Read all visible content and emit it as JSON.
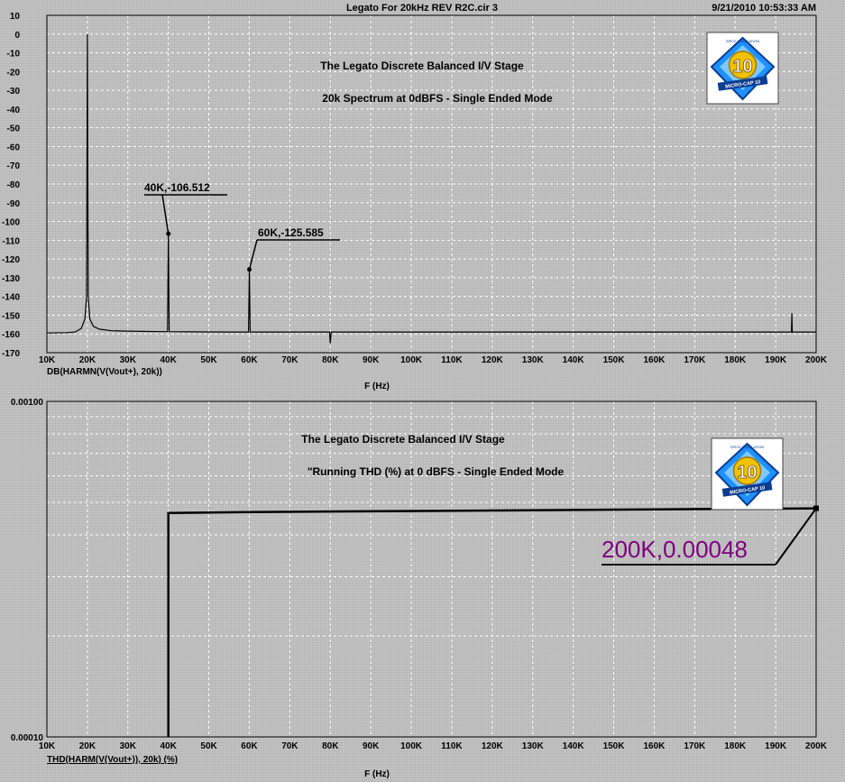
{
  "window": {
    "title": "Legato For 20kHz REV R2C.cir 3",
    "timestamp": "9/21/2010 10:53:33 AM"
  },
  "logo": {
    "number": "10",
    "ring_text": "MICRO-CAP 10",
    "top_text": "SPICE SIMULATION"
  },
  "colors": {
    "plot_bg": "#c0c0c0",
    "trace": "#000000",
    "grid": "#ffffff",
    "highlight_label": "#800080"
  },
  "chart_data": [
    {
      "type": "line",
      "title_lines": [
        "The Legato Discrete Balanced I/V Stage",
        "20k Spectrum at 0dBFS - Single Ended Mode"
      ],
      "trace_label": "DB(HARMN(V(Vout+), 20k))",
      "xlabel": "F (Hz)",
      "ylabel": "",
      "xlim": [
        10000,
        200000
      ],
      "ylim": [
        -170,
        10
      ],
      "grid": true,
      "x_tick_labels": [
        "10K",
        "20K",
        "30K",
        "40K",
        "50K",
        "60K",
        "70K",
        "80K",
        "90K",
        "100K",
        "110K",
        "120K",
        "130K",
        "140K",
        "150K",
        "160K",
        "170K",
        "180K",
        "190K",
        "200K"
      ],
      "y_ticks": [
        10,
        0,
        -10,
        -20,
        -30,
        -40,
        -50,
        -60,
        -70,
        -80,
        -90,
        -100,
        -110,
        -120,
        -130,
        -140,
        -150,
        -160,
        -170
      ],
      "series": [
        {
          "x": [
            10000,
            15000,
            17000,
            18500,
            19400,
            19800,
            20000,
            20200,
            20600,
            21500,
            23000,
            26000,
            30000,
            35000,
            39800,
            40000,
            40200,
            45000,
            55000,
            59800,
            60000,
            60200,
            70000,
            79800,
            80000,
            80200,
            90000,
            100000,
            120000,
            140000,
            160000,
            180000,
            193900,
            194000,
            194100,
            200000
          ],
          "y": [
            -159.5,
            -159.3,
            -159,
            -157,
            -152,
            -140,
            0,
            -140,
            -152,
            -156,
            -157.5,
            -158.3,
            -158.5,
            -158.7,
            -158.8,
            -106.5,
            -158.8,
            -158.9,
            -159,
            -159,
            -125.6,
            -159,
            -159,
            -159,
            -165,
            -159,
            -159,
            -159,
            -159,
            -159,
            -159,
            -159,
            -159,
            -149,
            -159,
            -159
          ]
        }
      ],
      "annotations": [
        {
          "text": "40K,-106.512",
          "x": 40000,
          "y": -106.512
        },
        {
          "text": "60K,-125.585",
          "x": 60000,
          "y": -125.585
        }
      ]
    },
    {
      "type": "line",
      "title_lines": [
        "The Legato Discrete Balanced I/V Stage",
        "\"Running THD (%) at 0 dBFS - Single Ended Mode"
      ],
      "trace_label": "THD(HARM(V(Vout+)), 20k) (%)",
      "xlabel": "F (Hz)",
      "ylabel": "",
      "xlim": [
        10000,
        200000
      ],
      "ylim": [
        0.0001,
        0.001
      ],
      "y_scale": "log",
      "grid": true,
      "x_tick_labels": [
        "10K",
        "20K",
        "30K",
        "40K",
        "50K",
        "60K",
        "70K",
        "80K",
        "90K",
        "100K",
        "110K",
        "120K",
        "130K",
        "140K",
        "150K",
        "160K",
        "170K",
        "180K",
        "190K",
        "200K"
      ],
      "y_tick_labels": [
        "0.00100",
        "0.00010"
      ],
      "series": [
        {
          "x": [
            40000,
            40000,
            60000,
            120000,
            200000
          ],
          "y": [
            0.0001,
            0.000465,
            0.000468,
            0.000473,
            0.00048
          ]
        }
      ],
      "annotations": [
        {
          "text": "200K,0.00048",
          "x": 200000,
          "y": 0.00048
        }
      ]
    }
  ]
}
